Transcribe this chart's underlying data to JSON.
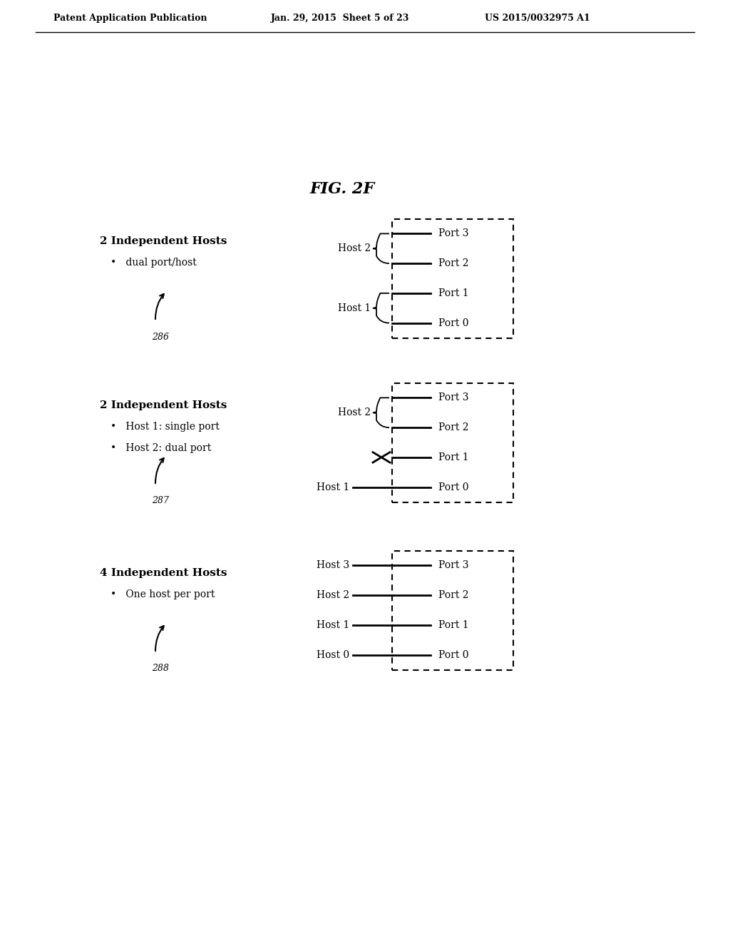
{
  "background_color": "#ffffff",
  "header_left": "Patent Application Publication",
  "header_center": "Jan. 29, 2015  Sheet 5 of 23",
  "header_right": "US 2015/0032975 A1",
  "fig_label": "FIG. 2F",
  "diagrams": [
    {
      "title": "2 Independent Hosts",
      "bullets": [
        "dual port/host"
      ],
      "label": "286",
      "ports": [
        "Port 3",
        "Port 2",
        "Port 1",
        "Port 0"
      ],
      "hosts": [
        {
          "label": "Host 2",
          "ports": [
            3,
            2
          ],
          "brace": true
        },
        {
          "label": "Host 1",
          "ports": [
            1,
            0
          ],
          "brace": true
        }
      ],
      "x_ports": []
    },
    {
      "title": "2 Independent Hosts",
      "bullets": [
        "Host 1: single port",
        "Host 2: dual port"
      ],
      "label": "287",
      "ports": [
        "Port 3",
        "Port 2",
        "Port 1",
        "Port 0"
      ],
      "hosts": [
        {
          "label": "Host 2",
          "ports": [
            3,
            2
          ],
          "brace": true
        },
        {
          "label": "Host 1",
          "ports": [
            0
          ],
          "brace": false
        }
      ],
      "x_ports": [
        1
      ]
    },
    {
      "title": "4 Independent Hosts",
      "bullets": [
        "One host per port"
      ],
      "label": "288",
      "ports": [
        "Port 3",
        "Port 2",
        "Port 1",
        "Port 0"
      ],
      "hosts": [
        {
          "label": "Host 3",
          "ports": [
            3
          ],
          "brace": false
        },
        {
          "label": "Host 2",
          "ports": [
            2
          ],
          "brace": false
        },
        {
          "label": "Host 1",
          "ports": [
            1
          ],
          "brace": false
        },
        {
          "label": "Host 0",
          "ports": [
            0
          ],
          "brace": false
        }
      ],
      "x_ports": []
    }
  ]
}
